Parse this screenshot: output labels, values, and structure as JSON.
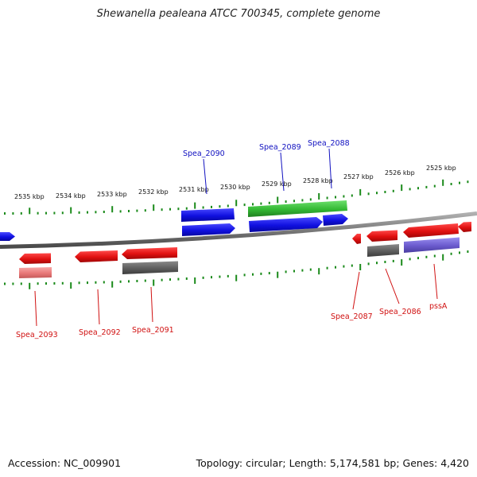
{
  "title": "Shewanella pealeana ATCC 700345, complete genome",
  "footer": {
    "accession": "Accession: NC_009901",
    "summary": "Topology: circular; Length: 5,174,581 bp; Genes: 4,420"
  },
  "colors": {
    "forward_label": "#1010c0",
    "reverse_label": "#d01010",
    "tick": "#1a8a1a",
    "backbone": "#808080"
  },
  "ticks": [
    "2535 kbp",
    "2534 kbp",
    "2533 kbp",
    "2532 kbp",
    "2531 kbp",
    "2530 kbp",
    "2529 kbp",
    "2528 kbp",
    "2527 kbp",
    "2526 kbp",
    "2525 kbp"
  ],
  "forward_labels": [
    "Spea_2090",
    "Spea_2089",
    "Spea_2088"
  ],
  "reverse_labels": [
    "Spea_2093",
    "Spea_2092",
    "Spea_2091",
    "Spea_2087",
    "Spea_2086",
    "pssA"
  ],
  "legend_colors": {
    "gene_forward": "#1a1ae6",
    "gene_reverse": "#e61a1a",
    "cds_green": "#3cc23c",
    "cds_grey": "#6a6a6a",
    "cds_purple": "#6a5acd",
    "cds_pink": "#e87878"
  }
}
